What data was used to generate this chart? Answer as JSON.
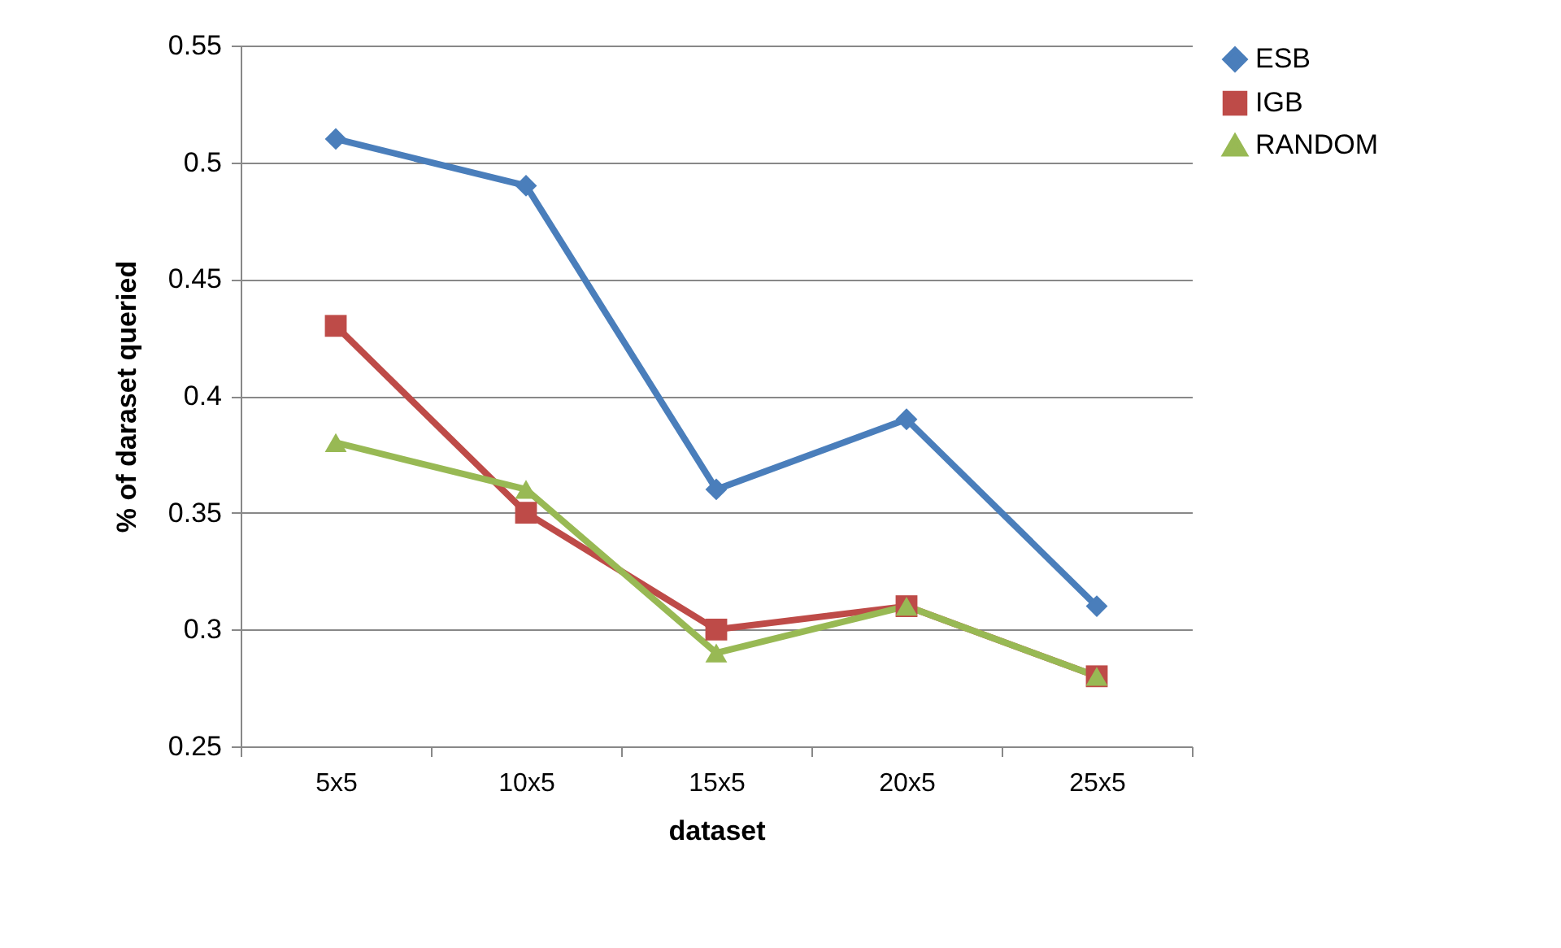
{
  "chart_data": {
    "type": "line",
    "xlabel": "dataset",
    "ylabel": "% of daraset queried",
    "categories": [
      "5x5",
      "10x5",
      "15x5",
      "20x5",
      "25x5"
    ],
    "series": [
      {
        "name": "ESB",
        "color": "#4a7ebb",
        "marker": "diamond",
        "values": [
          0.51,
          0.49,
          0.36,
          0.39,
          0.31
        ]
      },
      {
        "name": "IGB",
        "color": "#be4b48",
        "marker": "square",
        "values": [
          0.43,
          0.35,
          0.3,
          0.31,
          0.28
        ]
      },
      {
        "name": "RANDOM",
        "color": "#98b954",
        "marker": "triangle",
        "values": [
          0.38,
          0.36,
          0.29,
          0.31,
          0.28
        ]
      }
    ],
    "ylim": [
      0.25,
      0.55
    ],
    "yticks": [
      0.25,
      0.3,
      0.35,
      0.4,
      0.45,
      0.5,
      0.55
    ],
    "grid": "y",
    "legend": "right"
  }
}
